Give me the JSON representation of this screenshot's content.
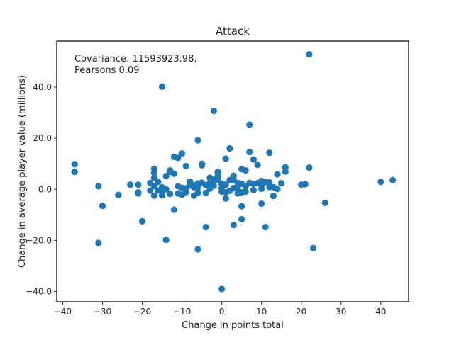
{
  "chart_data": {
    "type": "scatter",
    "title": "Attack",
    "xlabel": "Change in points total",
    "ylabel": "Change in average player value (millions)",
    "annotation": [
      "Covariance: 11593923.98,",
      "Pearsons 0.09"
    ],
    "xlim": [
      -41.5,
      47
    ],
    "ylim": [
      -44,
      58
    ],
    "xticks": [
      -40,
      -30,
      -20,
      -10,
      0,
      10,
      20,
      30,
      40
    ],
    "yticks": [
      -40,
      -20,
      0,
      20,
      40
    ],
    "xtick_labels": [
      "−40",
      "−30",
      "−20",
      "−10",
      "0",
      "10",
      "20",
      "30",
      "40"
    ],
    "ytick_labels": [
      "−40.0",
      "−20.0",
      "0.0",
      "20.0",
      "40.0"
    ],
    "color": "#1f77b4",
    "grid": false,
    "points": [
      [
        -37,
        9.8
      ],
      [
        -37,
        6.8
      ],
      [
        -31,
        1.2
      ],
      [
        -31,
        -21
      ],
      [
        -30,
        -6.5
      ],
      [
        -26,
        -2.2
      ],
      [
        -23,
        1.8
      ],
      [
        -21,
        1.8
      ],
      [
        -21,
        -1.2
      ],
      [
        -21,
        -1.6
      ],
      [
        -20,
        -12.5
      ],
      [
        -18,
        -0.5
      ],
      [
        -18,
        2.5
      ],
      [
        -17,
        4.5
      ],
      [
        -17,
        1.2
      ],
      [
        -17,
        8.0
      ],
      [
        -17,
        6.4
      ],
      [
        -17,
        -2.5
      ],
      [
        -16,
        -0.5
      ],
      [
        -16,
        2.9
      ],
      [
        -15,
        40.2
      ],
      [
        -15,
        0.8
      ],
      [
        -15,
        -2.4
      ],
      [
        -15,
        -0.3
      ],
      [
        -14,
        -19.8
      ],
      [
        -14,
        5.2
      ],
      [
        -14,
        0.0
      ],
      [
        -13,
        6.8
      ],
      [
        -13,
        7.4
      ],
      [
        -13,
        -1.8
      ],
      [
        -12,
        6.1
      ],
      [
        -12,
        -8.0
      ],
      [
        -12,
        12.7
      ],
      [
        -11,
        12.3
      ],
      [
        -11,
        -1.6
      ],
      [
        -11,
        1.2
      ],
      [
        -10,
        14.0
      ],
      [
        -10,
        -2.1
      ],
      [
        -10,
        0.6
      ],
      [
        -9,
        9.1
      ],
      [
        -9,
        -1.1
      ],
      [
        -9,
        0.4
      ],
      [
        -8,
        1.5
      ],
      [
        -8,
        3.0
      ],
      [
        -7,
        0.8
      ],
      [
        -7,
        -2.5
      ],
      [
        -7,
        1.6
      ],
      [
        -6,
        19.2
      ],
      [
        -6,
        -23.5
      ],
      [
        -6,
        2.3
      ],
      [
        -6,
        -1.3
      ],
      [
        -6,
        0.7
      ],
      [
        -5,
        10.0
      ],
      [
        -5,
        9.4
      ],
      [
        -5,
        2.6
      ],
      [
        -4,
        -14.8
      ],
      [
        -4,
        -1.4
      ],
      [
        -4,
        1.6
      ],
      [
        -3,
        4.5
      ],
      [
        -3,
        2.4
      ],
      [
        -3,
        0.3
      ],
      [
        -2,
        30.7
      ],
      [
        -2,
        3.7
      ],
      [
        -2,
        1.4
      ],
      [
        -1,
        6.8
      ],
      [
        -1,
        5.2
      ],
      [
        -1,
        3.8
      ],
      [
        0,
        -39
      ],
      [
        0,
        0.4
      ],
      [
        0,
        -0.9
      ],
      [
        0,
        2.2
      ],
      [
        1,
        12.0
      ],
      [
        1,
        -3.6
      ],
      [
        1,
        -1.2
      ],
      [
        1,
        1.8
      ],
      [
        2,
        16.0
      ],
      [
        2,
        3.6
      ],
      [
        2,
        -0.6
      ],
      [
        3,
        5.3
      ],
      [
        3,
        -14.0
      ],
      [
        3,
        3.5
      ],
      [
        3,
        0.5
      ],
      [
        4,
        2.5
      ],
      [
        4,
        -1.6
      ],
      [
        4,
        0.5
      ],
      [
        5,
        7.9
      ],
      [
        5,
        -6.6
      ],
      [
        5,
        -11.7
      ],
      [
        5,
        2.2
      ],
      [
        5,
        -1.2
      ],
      [
        6,
        7.4
      ],
      [
        6,
        1.1
      ],
      [
        6,
        -0.9
      ],
      [
        7,
        25.3
      ],
      [
        7,
        14.6
      ],
      [
        7,
        2.5
      ],
      [
        8,
        11.7
      ],
      [
        8,
        -0.3
      ],
      [
        8,
        2.1
      ],
      [
        9,
        9.6
      ],
      [
        9,
        2.4
      ],
      [
        10,
        3.3
      ],
      [
        10,
        -5.6
      ],
      [
        10,
        1.6
      ],
      [
        10,
        0.2
      ],
      [
        11,
        -14.8
      ],
      [
        11,
        2.8
      ],
      [
        12,
        14.3
      ],
      [
        12,
        2.7
      ],
      [
        12,
        0.9
      ],
      [
        13,
        -2.6
      ],
      [
        13,
        0.8
      ],
      [
        14,
        5.9
      ],
      [
        14,
        0.1
      ],
      [
        15,
        2.4
      ],
      [
        16,
        8.6
      ],
      [
        16,
        7.0
      ],
      [
        20,
        1.8
      ],
      [
        21,
        2.0
      ],
      [
        22,
        52.8
      ],
      [
        22,
        8.5
      ],
      [
        23,
        -23.0
      ],
      [
        26,
        -5.3
      ],
      [
        40,
        2.9
      ],
      [
        43,
        3.6
      ]
    ]
  }
}
